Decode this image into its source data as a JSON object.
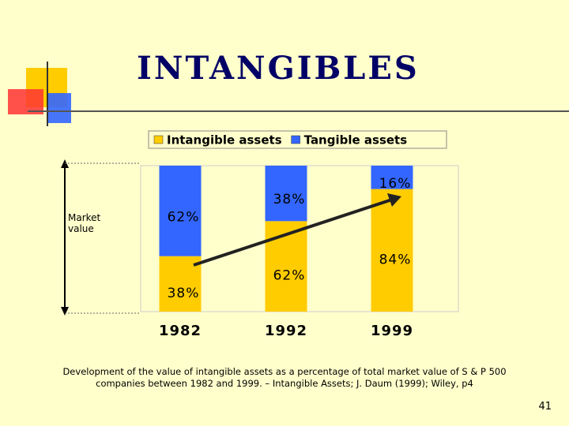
{
  "title": "INTANGIBLES",
  "chart_data": {
    "type": "stacked_bar",
    "categories": [
      "1982",
      "1992",
      "1999"
    ],
    "series": [
      {
        "name": "Intangible assets",
        "color": "#FFCC00",
        "values": [
          38,
          62,
          84
        ],
        "value_labels": [
          "38%",
          "62%",
          "84%"
        ]
      },
      {
        "name": "Tangible assets",
        "color": "#3366FF",
        "values": [
          62,
          38,
          16
        ],
        "value_labels": [
          "62%",
          "38%",
          "16%"
        ]
      }
    ],
    "ylim": [
      0,
      100
    ],
    "y_label": "Market value"
  },
  "caption": "Development of the value of intangible assets as a percentage of total market value of S & P 500 companies between 1982 and 1999. – Intangible Assets; J. Daum (1999); Wiley, p4",
  "page_number": "41"
}
